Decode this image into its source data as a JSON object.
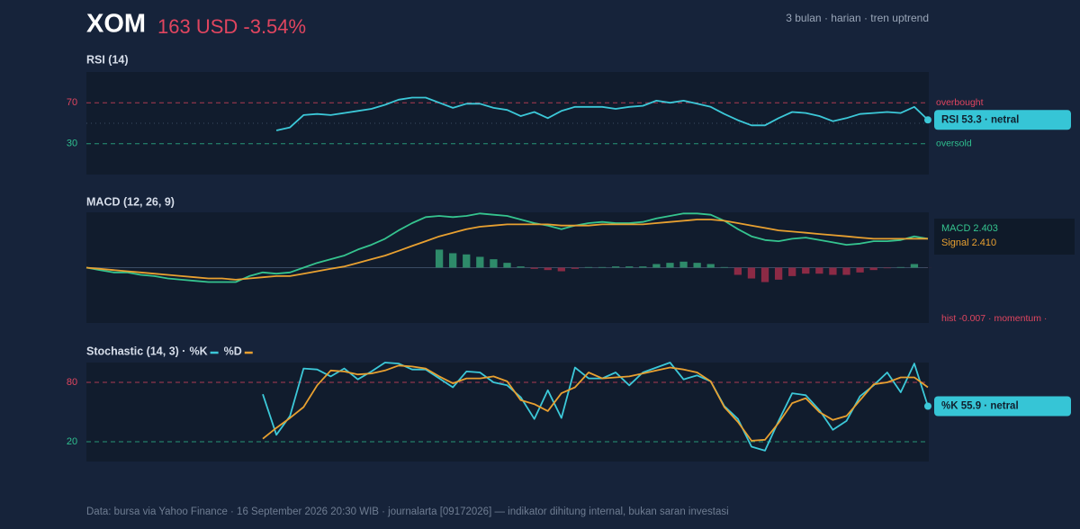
{
  "header": {
    "symbol": "XOM",
    "quote": "163 USD -3.54%",
    "meta": "3 bulan · harian · tren uptrend"
  },
  "footer": "Data: bursa via Yahoo Finance · 16 September 2026 20:30 WIB · journalarta [09172026] — indikator dihitung internal, bukan saran investasi",
  "chart_data": [
    {
      "type": "line",
      "title": "RSI (14)",
      "ylim": [
        0,
        100
      ],
      "yticks": [
        30,
        70
      ],
      "levels": [
        {
          "value": 70,
          "label": "overbought",
          "color": "#e0455f",
          "style": "dashed"
        },
        {
          "value": 50,
          "color": "#3a4b63",
          "style": "dotted"
        },
        {
          "value": 30,
          "label": "oversold",
          "color": "#2fbf8f",
          "style": "dashed"
        }
      ],
      "series": [
        {
          "color": "#3cc8d8",
          "dot": true,
          "badge": "RSI 53.3 · netral",
          "values": [
            null,
            null,
            null,
            null,
            null,
            null,
            null,
            null,
            null,
            null,
            null,
            null,
            null,
            null,
            43,
            46,
            58,
            59,
            58,
            60,
            62,
            64,
            68,
            73,
            75,
            75,
            70,
            65,
            69,
            69,
            65,
            63,
            57,
            61,
            55,
            62,
            66,
            66,
            66,
            64,
            66,
            67,
            72,
            70,
            72,
            69,
            66,
            59,
            53,
            48,
            48,
            55,
            61,
            60,
            57,
            52,
            55,
            59,
            60,
            61,
            60,
            66,
            53.3
          ]
        }
      ]
    },
    {
      "type": "line",
      "title": "MACD (12, 26, 9)",
      "ylim": [
        -4.6,
        4.6
      ],
      "zero_line": 0,
      "series": [
        {
          "name": "hist",
          "type": "bar",
          "color": "#2e8b6a",
          "negative_color": "#8b2a45",
          "badge": "-0.007 · momentum ·",
          "badge_color": "#e0455f",
          "values": [
            null,
            null,
            null,
            null,
            null,
            null,
            null,
            null,
            null,
            null,
            null,
            null,
            null,
            null,
            null,
            null,
            null,
            null,
            null,
            null,
            null,
            null,
            null,
            null,
            null,
            null,
            1.5,
            1.2,
            1.1,
            0.9,
            0.7,
            0.4,
            0.1,
            -0.1,
            -0.2,
            -0.3,
            -0.1,
            0.05,
            0.05,
            0.1,
            0.1,
            0.1,
            0.3,
            0.4,
            0.5,
            0.4,
            0.3,
            0.05,
            -0.6,
            -0.9,
            -1.2,
            -1.0,
            -0.7,
            -0.5,
            -0.5,
            -0.6,
            -0.6,
            -0.4,
            -0.2,
            -0.05,
            0.05,
            0.3,
            -0.007
          ]
        },
        {
          "name": "MACD",
          "color": "#35c48f",
          "badge": "2.403",
          "values": [
            0,
            -0.2,
            -0.4,
            -0.4,
            -0.6,
            -0.7,
            -0.9,
            -1.0,
            -1.1,
            -1.2,
            -1.2,
            -1.2,
            -0.7,
            -0.4,
            -0.5,
            -0.4,
            0,
            0.4,
            0.7,
            1.0,
            1.5,
            1.9,
            2.4,
            3.1,
            3.7,
            4.2,
            4.3,
            4.2,
            4.3,
            4.5,
            4.4,
            4.3,
            4.0,
            3.7,
            3.5,
            3.2,
            3.5,
            3.7,
            3.8,
            3.7,
            3.7,
            3.8,
            4.1,
            4.3,
            4.5,
            4.5,
            4.4,
            3.9,
            3.2,
            2.6,
            2.3,
            2.2,
            2.4,
            2.5,
            2.3,
            2.1,
            1.9,
            2.0,
            2.2,
            2.2,
            2.3,
            2.6,
            2.403
          ]
        },
        {
          "name": "Signal",
          "color": "#e8a030",
          "badge": "2.410",
          "values": [
            0,
            -0.1,
            -0.2,
            -0.3,
            -0.4,
            -0.5,
            -0.6,
            -0.7,
            -0.8,
            -0.9,
            -0.9,
            -1.0,
            -0.9,
            -0.8,
            -0.7,
            -0.7,
            -0.5,
            -0.3,
            -0.1,
            0.1,
            0.4,
            0.7,
            1.0,
            1.4,
            1.8,
            2.2,
            2.6,
            2.9,
            3.2,
            3.4,
            3.5,
            3.6,
            3.6,
            3.6,
            3.6,
            3.5,
            3.5,
            3.5,
            3.6,
            3.6,
            3.6,
            3.6,
            3.7,
            3.8,
            3.9,
            4.0,
            4.0,
            3.9,
            3.7,
            3.5,
            3.3,
            3.1,
            3.0,
            2.9,
            2.8,
            2.7,
            2.6,
            2.5,
            2.4,
            2.4,
            2.4,
            2.4,
            2.41
          ]
        }
      ]
    },
    {
      "type": "line",
      "title": "Stochastic (14, 3) ·",
      "legend": "title",
      "ylim": [
        0,
        100
      ],
      "yticks": [
        20,
        80
      ],
      "levels": [
        {
          "value": 80,
          "color": "#e0455f",
          "style": "dashed"
        },
        {
          "value": 20,
          "color": "#2fbf8f",
          "style": "dashed"
        }
      ],
      "series": [
        {
          "name": "%K",
          "color": "#3cc8d8",
          "dot": true,
          "badge": "%K 55.9 · netral",
          "values": [
            null,
            null,
            null,
            null,
            null,
            null,
            null,
            null,
            null,
            null,
            null,
            null,
            null,
            68,
            27,
            46,
            94,
            93,
            86,
            94,
            83,
            91,
            100,
            99,
            93,
            93,
            84,
            75,
            91,
            90,
            80,
            77,
            65,
            43,
            72,
            44,
            95,
            84,
            84,
            90,
            77,
            90,
            95,
            100,
            83,
            87,
            81,
            56,
            43,
            15,
            11,
            41,
            69,
            67,
            52,
            32,
            41,
            66,
            77,
            90,
            70,
            99,
            55.9
          ]
        },
        {
          "name": "%D",
          "color": "#e8a030",
          "values": [
            null,
            null,
            null,
            null,
            null,
            null,
            null,
            null,
            null,
            null,
            null,
            null,
            null,
            23,
            34,
            44,
            55,
            77,
            92,
            91,
            88,
            89,
            92,
            97,
            96,
            94,
            86,
            79,
            84,
            84,
            86,
            81,
            62,
            58,
            51,
            69,
            75,
            90,
            84,
            85,
            86,
            89,
            92,
            95,
            93,
            90,
            81,
            55,
            40,
            21,
            22,
            39,
            59,
            64,
            50,
            42,
            46,
            62,
            78,
            80,
            85,
            85,
            75
          ]
        }
      ]
    }
  ]
}
